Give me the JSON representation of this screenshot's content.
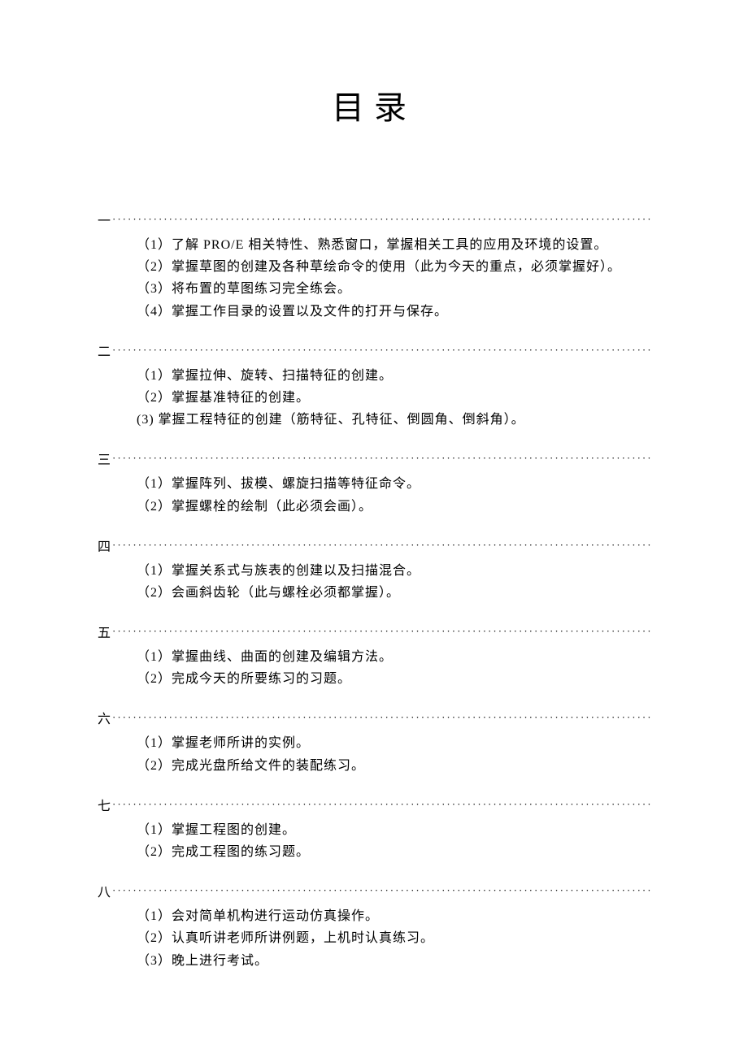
{
  "title": "目录",
  "sections": [
    {
      "num": "一",
      "items": [
        "（1）了解 PRO/E 相关特性、熟悉窗口，掌握相关工具的应用及环境的设置。",
        "（2）掌握草图的创建及各种草绘命令的使用（此为今天的重点，必须掌握好）。",
        "（3）将布置的草图练习完全练会。",
        "（4）掌握工作目录的设置以及文件的打开与保存。"
      ]
    },
    {
      "num": "二",
      "items": [
        "（1）掌握拉伸、旋转、扫描特征的创建。",
        "（2）掌握基准特征的创建。",
        "(3)   掌握工程特征的创建（筋特征、孔特征、倒圆角、倒斜角）。"
      ]
    },
    {
      "num": "三",
      "items": [
        "（1）掌握阵列、拔模、螺旋扫描等特征命令。",
        "（2）掌握螺栓的绘制（此必须会画）。"
      ]
    },
    {
      "num": "四",
      "items": [
        "（1）掌握关系式与族表的创建以及扫描混合。",
        "（2）会画斜齿轮（此与螺栓必须都掌握）。"
      ]
    },
    {
      "num": "五",
      "items": [
        "（1）掌握曲线、曲面的创建及编辑方法。",
        "（2）完成今天的所要练习的习题。"
      ]
    },
    {
      "num": "六",
      "items": [
        "（1）掌握老师所讲的实例。",
        "（2）完成光盘所给文件的装配练习。"
      ]
    },
    {
      "num": "七",
      "items": [
        "（1）掌握工程图的创建。",
        "（2）完成工程图的练习题。"
      ]
    },
    {
      "num": "八",
      "items": [
        "（1）会对简单机构进行运动仿真操作。",
        "（2）认真听讲老师所讲例题，上机时认真练习。",
        "（3）晚上进行考试。"
      ]
    }
  ]
}
